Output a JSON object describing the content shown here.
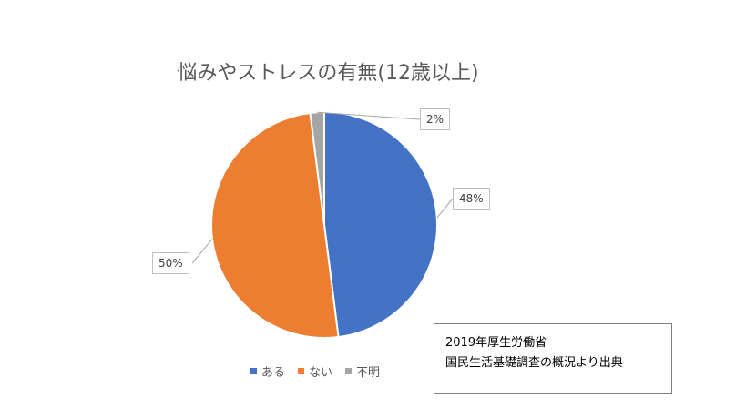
{
  "chart_data": {
    "type": "pie",
    "title": "悩みやストレスの有無(12歳以上)",
    "categories": [
      "ある",
      "ない",
      "不明"
    ],
    "values": [
      48,
      50,
      2
    ],
    "data_labels": [
      "48%",
      "50%",
      "2%"
    ],
    "colors": [
      "#4472C4",
      "#ED7D31",
      "#A5A5A5"
    ],
    "legend_position": "bottom"
  },
  "source": {
    "line1": "2019年厚生労働省",
    "line2": "国民生活基礎調査の概況より出典"
  }
}
